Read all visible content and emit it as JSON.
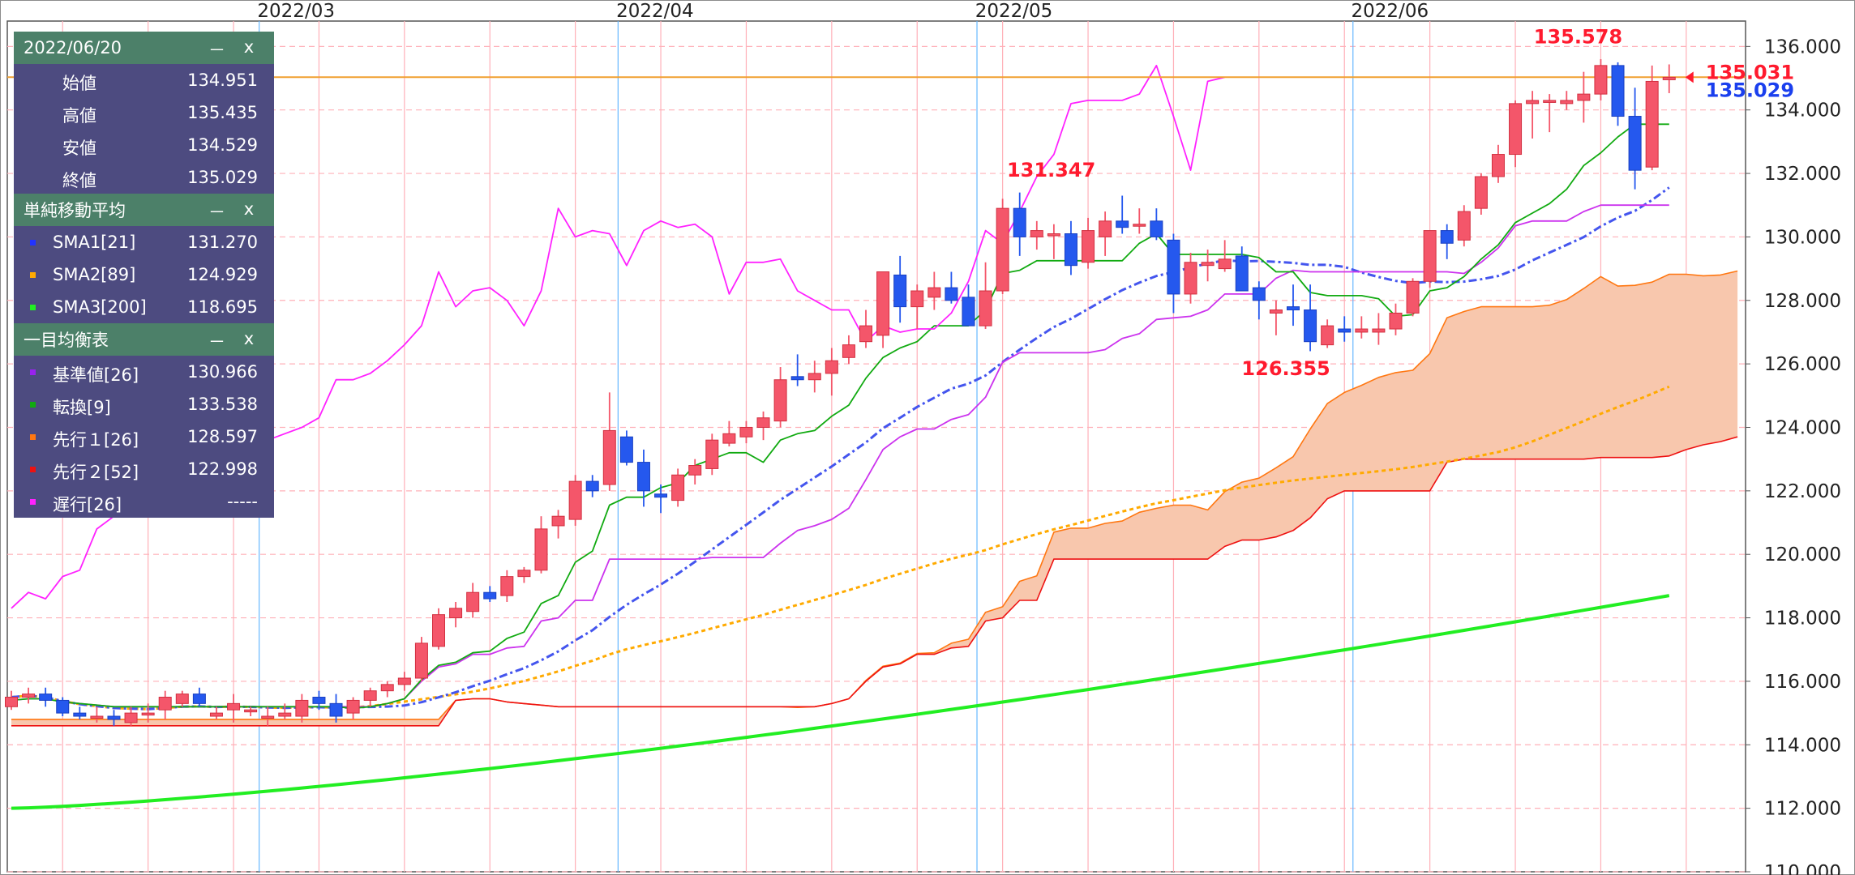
{
  "ohlc_panel": {
    "date": "2022/06/20",
    "min_label": "－",
    "close_label": "x",
    "rows": [
      {
        "label": "始値",
        "value": "134.951"
      },
      {
        "label": "高値",
        "value": "135.435"
      },
      {
        "label": "安値",
        "value": "134.529"
      },
      {
        "label": "終値",
        "value": "135.029"
      }
    ]
  },
  "sma_panel": {
    "title": "単純移動平均",
    "min_label": "－",
    "close_label": "x",
    "rows": [
      {
        "label": "SMA1[21]",
        "value": "131.270",
        "color": "#2233ff"
      },
      {
        "label": "SMA2[89]",
        "value": "124.929",
        "color": "#ffaa00"
      },
      {
        "label": "SMA3[200]",
        "value": "118.695",
        "color": "#22ee22"
      }
    ]
  },
  "ichimoku_panel": {
    "title": "一目均衡表",
    "min_label": "－",
    "close_label": "x",
    "rows": [
      {
        "label": "基準値[26]",
        "value": "130.966",
        "color": "#9922ee"
      },
      {
        "label": "転換[9]",
        "value": "133.538",
        "color": "#11aa11"
      },
      {
        "label": "先行１[26]",
        "value": "128.597",
        "color": "#ff7711"
      },
      {
        "label": "先行２[52]",
        "value": "122.998",
        "color": "#ee1111"
      },
      {
        "label": "遅行[26]",
        "value": "-----",
        "color": "#ff22ff"
      }
    ]
  },
  "chart_data": {
    "type": "candlestick",
    "y_axis": {
      "min": 110,
      "max": 136,
      "ticks": [
        "136.000",
        "134.000",
        "132.000",
        "130.000",
        "128.000",
        "126.000",
        "124.000",
        "122.000",
        "120.000",
        "118.000",
        "116.000",
        "114.000",
        "112.000",
        "110.000"
      ]
    },
    "x_axis": {
      "month_labels": [
        "2022/03",
        "2022/04",
        "2022/05",
        "2022/06"
      ],
      "month_index": [
        15,
        36,
        57,
        79
      ]
    },
    "grid": true,
    "annotations": {
      "high_label": "135.578",
      "low_label": "126.355",
      "mid_high_label": "131.347",
      "price_marker": "135.031",
      "close_marker": "135.029"
    },
    "colors": {
      "up": "#f4566a",
      "down": "#2558ee",
      "kumo": "#f8c7ad",
      "price_line": "#f0a030"
    },
    "candles": [
      [
        115.2,
        115.7,
        115.1,
        115.5
      ],
      [
        115.5,
        115.8,
        115.3,
        115.6
      ],
      [
        115.6,
        115.8,
        115.2,
        115.4
      ],
      [
        115.4,
        115.5,
        114.9,
        115.0
      ],
      [
        115.0,
        115.2,
        114.8,
        114.9
      ],
      [
        114.9,
        115.2,
        114.7,
        114.9
      ],
      [
        114.9,
        115.1,
        114.6,
        114.8
      ],
      [
        114.7,
        115.2,
        114.6,
        115.0
      ],
      [
        115.0,
        115.3,
        114.7,
        115.0
      ],
      [
        115.1,
        115.7,
        114.8,
        115.5
      ],
      [
        115.3,
        115.7,
        115.2,
        115.6
      ],
      [
        115.6,
        115.8,
        115.2,
        115.3
      ],
      [
        114.9,
        115.2,
        114.8,
        115.0
      ],
      [
        115.1,
        115.6,
        114.7,
        115.3
      ],
      [
        115.1,
        115.2,
        114.9,
        115.1
      ],
      [
        114.9,
        115.2,
        114.6,
        114.9
      ],
      [
        114.9,
        115.3,
        114.8,
        115.0
      ],
      [
        114.9,
        115.6,
        114.7,
        115.4
      ],
      [
        115.5,
        115.7,
        115.1,
        115.3
      ],
      [
        115.3,
        115.6,
        114.7,
        114.9
      ],
      [
        115.0,
        115.5,
        114.8,
        115.4
      ],
      [
        115.4,
        115.8,
        115.2,
        115.7
      ],
      [
        115.7,
        116.0,
        115.5,
        115.9
      ],
      [
        115.9,
        116.3,
        115.7,
        116.1
      ],
      [
        116.1,
        117.4,
        116.0,
        117.2
      ],
      [
        117.1,
        118.3,
        117.0,
        118.1
      ],
      [
        118.0,
        118.5,
        117.7,
        118.3
      ],
      [
        118.2,
        119.1,
        118.0,
        118.8
      ],
      [
        118.8,
        119.0,
        118.5,
        118.6
      ],
      [
        118.7,
        119.5,
        118.5,
        119.3
      ],
      [
        119.3,
        119.6,
        119.1,
        119.5
      ],
      [
        119.5,
        121.2,
        119.4,
        120.8
      ],
      [
        120.9,
        121.4,
        120.5,
        121.2
      ],
      [
        121.1,
        122.5,
        120.9,
        122.3
      ],
      [
        122.3,
        122.5,
        121.8,
        122.0
      ],
      [
        122.2,
        125.1,
        122.0,
        123.9
      ],
      [
        123.7,
        123.9,
        122.8,
        122.9
      ],
      [
        122.9,
        123.3,
        121.5,
        122.0
      ],
      [
        121.9,
        122.2,
        121.3,
        121.8
      ],
      [
        121.7,
        122.7,
        121.5,
        122.5
      ],
      [
        122.5,
        123.0,
        122.2,
        122.8
      ],
      [
        122.7,
        123.8,
        122.5,
        123.6
      ],
      [
        123.5,
        124.2,
        123.4,
        123.8
      ],
      [
        123.7,
        124.2,
        123.5,
        124.0
      ],
      [
        124.0,
        124.5,
        123.6,
        124.3
      ],
      [
        124.2,
        125.9,
        124.0,
        125.5
      ],
      [
        125.6,
        126.3,
        125.3,
        125.5
      ],
      [
        125.5,
        126.1,
        125.1,
        125.7
      ],
      [
        125.7,
        126.5,
        125.0,
        126.1
      ],
      [
        126.2,
        126.9,
        126.0,
        126.6
      ],
      [
        126.7,
        127.7,
        126.5,
        127.2
      ],
      [
        126.9,
        128.9,
        126.5,
        128.9
      ],
      [
        128.8,
        129.4,
        127.3,
        127.8
      ],
      [
        127.8,
        128.5,
        127.1,
        128.3
      ],
      [
        128.1,
        128.9,
        127.7,
        128.4
      ],
      [
        128.4,
        128.9,
        127.9,
        128.0
      ],
      [
        128.1,
        128.5,
        127.2,
        127.2
      ],
      [
        127.2,
        129.2,
        127.1,
        128.3
      ],
      [
        128.3,
        131.2,
        128.2,
        130.9
      ],
      [
        130.9,
        131.4,
        129.4,
        130.0
      ],
      [
        130.0,
        130.5,
        129.6,
        130.2
      ],
      [
        130.1,
        130.4,
        129.3,
        130.1
      ],
      [
        130.1,
        130.5,
        128.8,
        129.1
      ],
      [
        129.2,
        130.6,
        129.0,
        130.2
      ],
      [
        130.0,
        130.8,
        129.4,
        130.5
      ],
      [
        130.5,
        131.3,
        130.1,
        130.3
      ],
      [
        130.4,
        130.9,
        130.1,
        130.4
      ],
      [
        130.5,
        130.9,
        129.9,
        130.0
      ],
      [
        129.9,
        130.1,
        127.6,
        128.2
      ],
      [
        128.2,
        129.5,
        127.9,
        129.2
      ],
      [
        129.1,
        129.6,
        128.6,
        129.2
      ],
      [
        129.0,
        129.9,
        128.9,
        129.3
      ],
      [
        129.4,
        129.7,
        128.3,
        128.3
      ],
      [
        128.4,
        128.6,
        127.4,
        128.0
      ],
      [
        127.6,
        128.0,
        126.9,
        127.7
      ],
      [
        127.8,
        128.5,
        127.2,
        127.7
      ],
      [
        127.7,
        128.5,
        126.4,
        126.7
      ],
      [
        126.6,
        127.4,
        126.5,
        127.2
      ],
      [
        127.1,
        127.5,
        126.7,
        127.0
      ],
      [
        127.0,
        127.5,
        126.8,
        127.1
      ],
      [
        127.0,
        127.6,
        126.6,
        127.1
      ],
      [
        127.1,
        127.9,
        126.9,
        127.6
      ],
      [
        127.6,
        128.7,
        127.5,
        128.6
      ],
      [
        128.6,
        130.2,
        128.4,
        130.2
      ],
      [
        130.2,
        130.4,
        129.3,
        129.8
      ],
      [
        129.9,
        131.0,
        129.7,
        130.8
      ],
      [
        130.9,
        132.0,
        130.7,
        131.9
      ],
      [
        131.9,
        132.9,
        131.7,
        132.6
      ],
      [
        132.6,
        134.3,
        132.2,
        134.2
      ],
      [
        134.2,
        134.6,
        133.1,
        134.3
      ],
      [
        134.3,
        134.5,
        133.3,
        134.3
      ],
      [
        134.2,
        134.6,
        134.0,
        134.3
      ],
      [
        134.3,
        135.2,
        133.6,
        134.5
      ],
      [
        134.5,
        135.6,
        134.3,
        135.4
      ],
      [
        135.4,
        135.5,
        133.5,
        133.8
      ],
      [
        133.8,
        134.7,
        131.5,
        132.1
      ],
      [
        132.2,
        135.4,
        132.1,
        134.9
      ],
      [
        134.951,
        135.435,
        134.529,
        135.029
      ]
    ]
  }
}
